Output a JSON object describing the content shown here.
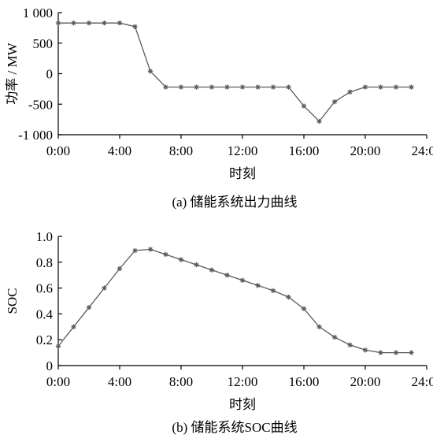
{
  "colors": {
    "line": "#5a5a5a",
    "marker": "#5a5a5a",
    "axis": "#000000",
    "background": "#ffffff"
  },
  "chart_data": [
    {
      "type": "line",
      "caption": "(a)  储能系统出力曲线",
      "xlabel": "时刻",
      "ylabel": "功率 / MW",
      "xlim": [
        0,
        24
      ],
      "ylim": [
        -1000,
        1000
      ],
      "x_ticks": [
        0,
        4,
        8,
        12,
        16,
        20,
        24
      ],
      "x_tick_labels": [
        "0:00",
        "4:00",
        "8:00",
        "12:00",
        "16:00",
        "20:00",
        "24:00"
      ],
      "y_ticks": [
        1000,
        500,
        0,
        -500,
        -1000
      ],
      "y_tick_labels": [
        "1 000",
        "500",
        "0",
        "-500",
        "-1 000"
      ],
      "grid": false,
      "legend": "none",
      "marker": "asterisk",
      "x": [
        0,
        1,
        2,
        3,
        4,
        5,
        6,
        7,
        8,
        9,
        10,
        11,
        12,
        13,
        14,
        15,
        16,
        17,
        18,
        19,
        20,
        21,
        22,
        23
      ],
      "values": [
        830,
        830,
        830,
        830,
        830,
        770,
        40,
        -220,
        -220,
        -220,
        -220,
        -220,
        -220,
        -220,
        -220,
        -220,
        -530,
        -780,
        -460,
        -300,
        -220,
        -220,
        -220,
        -220
      ]
    },
    {
      "type": "line",
      "caption": "(b)  储能系统SOC曲线",
      "xlabel": "时刻",
      "ylabel": "SOC",
      "xlim": [
        0,
        24
      ],
      "ylim": [
        0,
        1
      ],
      "x_ticks": [
        0,
        4,
        8,
        12,
        16,
        20,
        24
      ],
      "x_tick_labels": [
        "0:00",
        "4:00",
        "8:00",
        "12:00",
        "16:00",
        "20:00",
        "24:00"
      ],
      "y_ticks": [
        1,
        0.8,
        0.6,
        0.4,
        0.2,
        0
      ],
      "y_tick_labels": [
        "1.0",
        "0.8",
        "0.6",
        "0.4",
        "0.2",
        "0"
      ],
      "grid": false,
      "legend": "none",
      "marker": "asterisk",
      "x": [
        0,
        1,
        2,
        3,
        4,
        5,
        6,
        7,
        8,
        9,
        10,
        11,
        12,
        13,
        14,
        15,
        16,
        17,
        18,
        19,
        20,
        21,
        22,
        23
      ],
      "values": [
        0.15,
        0.3,
        0.45,
        0.6,
        0.75,
        0.89,
        0.9,
        0.86,
        0.82,
        0.78,
        0.74,
        0.7,
        0.66,
        0.62,
        0.58,
        0.53,
        0.44,
        0.3,
        0.22,
        0.16,
        0.12,
        0.1,
        0.1,
        0.1
      ]
    }
  ]
}
